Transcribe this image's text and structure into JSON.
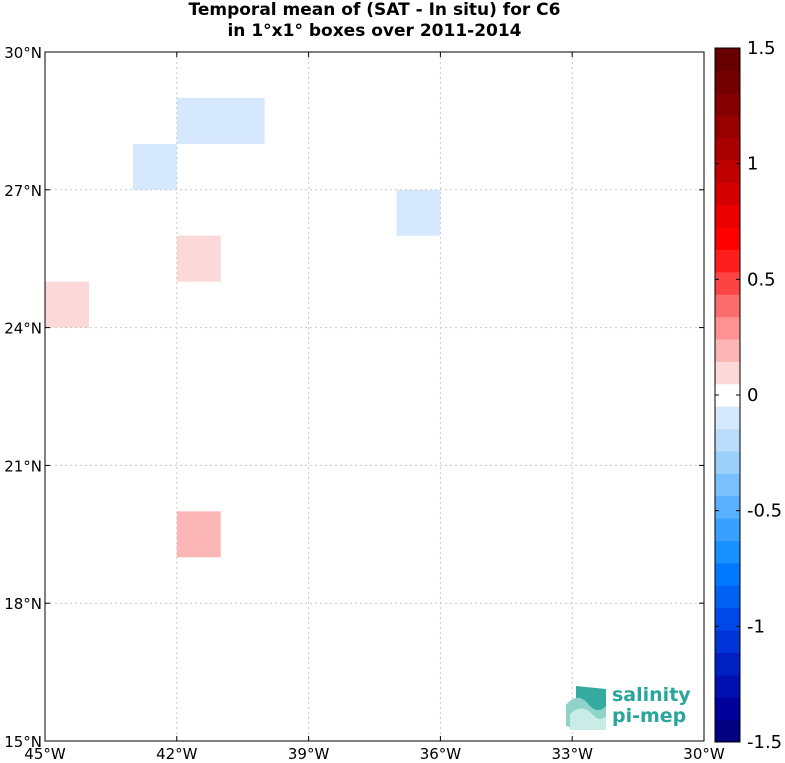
{
  "title": {
    "line1": "Temporal mean of (SAT - In situ) for C6",
    "line2": "in 1°x1° boxes over 2011-2014"
  },
  "map": {
    "lon_range": [
      -45,
      -30
    ],
    "lat_range": [
      15,
      30
    ],
    "grid": true,
    "x_ticks": [
      {
        "value": -45,
        "label": "45°W"
      },
      {
        "value": -42,
        "label": "42°W"
      },
      {
        "value": -39,
        "label": "39°W"
      },
      {
        "value": -36,
        "label": "36°W"
      },
      {
        "value": -33,
        "label": "33°W"
      },
      {
        "value": -30,
        "label": "30°W"
      }
    ],
    "y_ticks": [
      {
        "value": 15,
        "label": "15°N"
      },
      {
        "value": 18,
        "label": "18°N"
      },
      {
        "value": 21,
        "label": "21°N"
      },
      {
        "value": 24,
        "label": "24°N"
      },
      {
        "value": 27,
        "label": "27°N"
      },
      {
        "value": 30,
        "label": "30°N"
      }
    ],
    "cells": [
      {
        "lon": [
          -42,
          -40
        ],
        "lat": [
          28,
          29
        ],
        "value": -0.15,
        "color": "#d6e8fd"
      },
      {
        "lon": [
          -43,
          -42
        ],
        "lat": [
          27,
          28
        ],
        "value": -0.15,
        "color": "#d6e8fd"
      },
      {
        "lon": [
          -37,
          -36
        ],
        "lat": [
          26,
          27
        ],
        "value": -0.15,
        "color": "#d6e8fd"
      },
      {
        "lon": [
          -42,
          -41
        ],
        "lat": [
          25,
          26
        ],
        "value": 0.15,
        "color": "#fdd8d8"
      },
      {
        "lon": [
          -45,
          -44
        ],
        "lat": [
          24,
          25
        ],
        "value": 0.15,
        "color": "#fdd8d8"
      },
      {
        "lon": [
          -42,
          -41
        ],
        "lat": [
          19,
          20
        ],
        "value": 0.3,
        "color": "#fdb6b6"
      }
    ]
  },
  "colorbar": {
    "range": [
      -1.5,
      1.5
    ],
    "step": 0.1,
    "ticks": [
      {
        "value": 1.5,
        "label": "1.5"
      },
      {
        "value": 1,
        "label": "1"
      },
      {
        "value": 0.5,
        "label": "0.5"
      },
      {
        "value": 0,
        "label": "0"
      },
      {
        "value": -0.5,
        "label": "-0.5"
      },
      {
        "value": -1,
        "label": "-1"
      },
      {
        "value": -1.5,
        "label": "-1.5"
      }
    ],
    "colors": [
      "#000080",
      "#00009a",
      "#0010b0",
      "#0020c4",
      "#0034d8",
      "#0048e8",
      "#0060f4",
      "#0078ff",
      "#1890ff",
      "#38a0ff",
      "#58b0ff",
      "#7ac0fd",
      "#9cd0fb",
      "#bcdcfb",
      "#d6e8fd",
      "#ffffff",
      "#fdd8d8",
      "#fdb6b6",
      "#fc9292",
      "#fb6c6c",
      "#fc4444",
      "#ff1e1e",
      "#ff0000",
      "#ea0000",
      "#d40000",
      "#be0000",
      "#aa0000",
      "#960000",
      "#840000",
      "#740000",
      "#660000"
    ]
  },
  "logo": {
    "line1": "salinity",
    "line2": "pi-mep",
    "color": "#2aa59b"
  }
}
